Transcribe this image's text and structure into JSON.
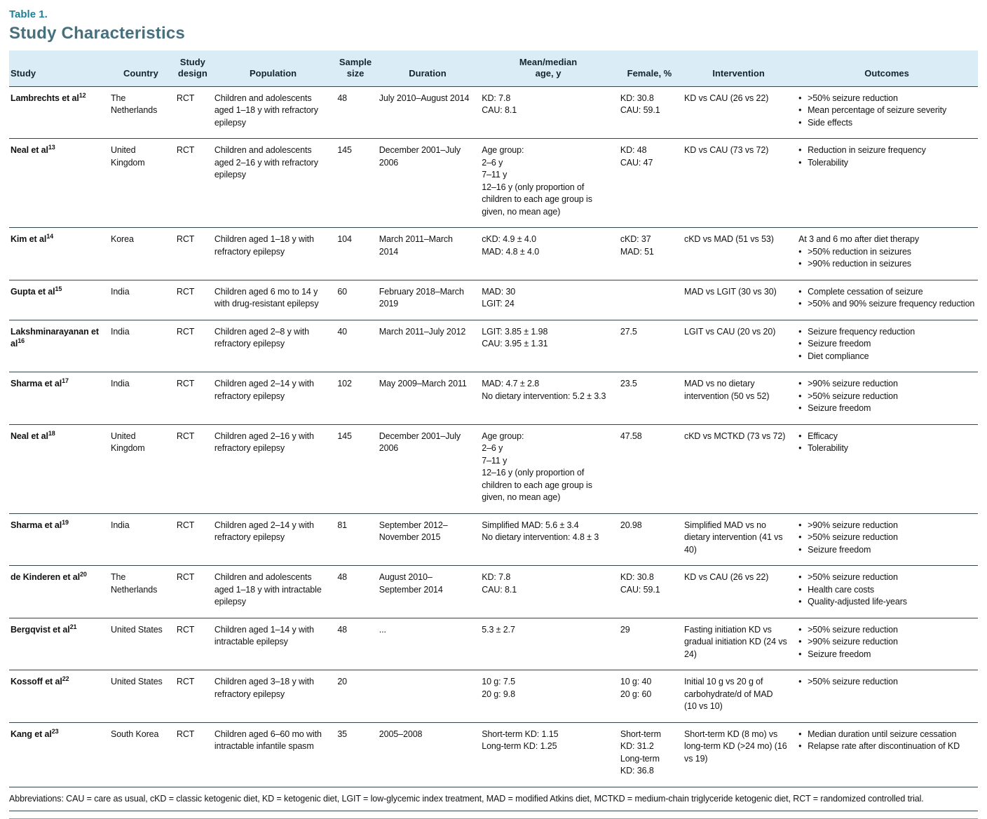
{
  "page": {
    "table_label": "Table 1.",
    "title": "Study Characteristics"
  },
  "colors": {
    "label_teal": "#1E7F95",
    "title_slate_teal": "#47707E",
    "header_band_blue": "#DAECF6",
    "rule_dark": "#32434E"
  },
  "table": {
    "bullet_char": "•",
    "columns": [
      {
        "key": "study",
        "label": "Study"
      },
      {
        "key": "country",
        "label": "Country"
      },
      {
        "key": "design",
        "label": "Study design",
        "label_lines": [
          "Study",
          "design"
        ]
      },
      {
        "key": "population",
        "label": "Population"
      },
      {
        "key": "sample",
        "label": "Sample size",
        "label_lines": [
          "Sample",
          "size"
        ]
      },
      {
        "key": "duration",
        "label": "Duration"
      },
      {
        "key": "age",
        "label": "Mean/median age, y",
        "label_lines": [
          "Mean/median",
          "age, y"
        ]
      },
      {
        "key": "female",
        "label": "Female, %"
      },
      {
        "key": "intervention",
        "label": "Intervention"
      },
      {
        "key": "outcomes",
        "label": "Outcomes"
      }
    ],
    "rows": [
      {
        "study": "Lambrechts et al",
        "study_sup": "12",
        "country": "The Netherlands",
        "design": "RCT",
        "population": "Children and adolescents aged 1–18 y with refractory epilepsy",
        "sample": "48",
        "duration": "July 2010–August 2014",
        "age": [
          "KD: 7.8",
          "CAU: 8.1"
        ],
        "female": [
          "KD: 30.8",
          "CAU: 59.1"
        ],
        "intervention": "KD vs CAU (26 vs 22)",
        "outcomes": [
          {
            "bullet": true,
            "text": ">50% seizure reduction"
          },
          {
            "bullet": true,
            "text": "Mean percentage of seizure severity"
          },
          {
            "bullet": true,
            "text": "Side effects"
          }
        ]
      },
      {
        "study": "Neal et al",
        "study_sup": "13",
        "country": "United Kingdom",
        "design": "RCT",
        "population": "Children and adolescents aged 2–16 y with refractory epilepsy",
        "sample": "145",
        "duration": "December 2001–July 2006",
        "age": [
          "Age group:",
          "2–6 y",
          "7–11 y",
          "12–16 y (only proportion of children to each age group is given, no mean age)"
        ],
        "female": [
          "KD: 48",
          "CAU: 47"
        ],
        "intervention": "KD vs CAU (73 vs 72)",
        "outcomes": [
          {
            "bullet": true,
            "text": "Reduction in seizure frequency"
          },
          {
            "bullet": true,
            "text": "Tolerability"
          }
        ]
      },
      {
        "study": "Kim et al",
        "study_sup": "14",
        "country": "Korea",
        "design": "RCT",
        "population": "Children aged 1–18 y with refractory epilepsy",
        "sample": "104",
        "duration": "March 2011–March 2014",
        "age": [
          "cKD: 4.9 ± 4.0",
          "MAD: 4.8 ± 4.0"
        ],
        "female": [
          "cKD: 37",
          "MAD: 51"
        ],
        "intervention": "cKD vs MAD (51 vs 53)",
        "outcomes": [
          {
            "bullet": false,
            "text": "At 3 and 6 mo after diet therapy"
          },
          {
            "bullet": true,
            "text": ">50% reduction in seizures"
          },
          {
            "bullet": true,
            "text": ">90% reduction in seizures"
          }
        ]
      },
      {
        "study": "Gupta et al",
        "study_sup": "15",
        "country": "India",
        "design": "RCT",
        "population": "Children aged 6 mo to 14 y with drug-resistant epilepsy",
        "sample": "60",
        "duration": "February 2018–March 2019",
        "age": [
          "MAD: 30",
          "LGIT: 24"
        ],
        "female": [],
        "intervention": "MAD vs LGIT (30 vs 30)",
        "outcomes": [
          {
            "bullet": true,
            "text": "Complete cessation of seizure"
          },
          {
            "bullet": true,
            "text": ">50% and 90% seizure frequency reduction"
          }
        ]
      },
      {
        "study": "Lakshminarayanan et al",
        "study_sup": "16",
        "country": "India",
        "design": "RCT",
        "population": "Children aged 2–8 y with refractory epilepsy",
        "sample": "40",
        "duration": "March 2011–July 2012",
        "age": [
          "LGIT: 3.85 ± 1.98",
          "CAU: 3.95 ± 1.31"
        ],
        "female": [
          "27.5"
        ],
        "intervention": "LGIT vs CAU (20 vs 20)",
        "outcomes": [
          {
            "bullet": true,
            "text": "Seizure frequency reduction"
          },
          {
            "bullet": true,
            "text": "Seizure freedom"
          },
          {
            "bullet": true,
            "text": "Diet compliance"
          }
        ]
      },
      {
        "study": "Sharma et al",
        "study_sup": "17",
        "country": "India",
        "design": "RCT",
        "population": "Children aged 2–14 y with refractory epilepsy",
        "sample": "102",
        "duration": "May 2009–March 2011",
        "age": [
          "MAD: 4.7 ± 2.8",
          "No dietary intervention: 5.2 ± 3.3"
        ],
        "female": [
          "23.5"
        ],
        "intervention": "MAD vs no dietary intervention (50 vs 52)",
        "outcomes": [
          {
            "bullet": true,
            "text": ">90% seizure reduction"
          },
          {
            "bullet": true,
            "text": ">50% seizure reduction"
          },
          {
            "bullet": true,
            "text": "Seizure freedom"
          }
        ]
      },
      {
        "study": "Neal et al",
        "study_sup": "18",
        "country": "United Kingdom",
        "design": "RCT",
        "population": "Children aged 2–16 y with refractory epilepsy",
        "sample": "145",
        "duration": "December 2001–July 2006",
        "age": [
          "Age group:",
          "2–6 y",
          "7–11 y",
          "12–16 y (only proportion of children to each age group is given, no mean age)"
        ],
        "female": [
          "47.58"
        ],
        "intervention": "cKD vs MCTKD (73 vs 72)",
        "outcomes": [
          {
            "bullet": true,
            "text": "Efficacy"
          },
          {
            "bullet": true,
            "text": "Tolerability"
          }
        ]
      },
      {
        "study": "Sharma et al",
        "study_sup": "19",
        "country": "India",
        "design": "RCT",
        "population": "Children aged 2–14 y with refractory epilepsy",
        "sample": "81",
        "duration": "September 2012–November 2015",
        "age": [
          "Simplified MAD: 5.6 ± 3.4",
          "No dietary intervention: 4.8 ± 3"
        ],
        "female": [
          "20.98"
        ],
        "intervention": "Simplified MAD vs no dietary intervention (41 vs 40)",
        "outcomes": [
          {
            "bullet": true,
            "text": ">90% seizure reduction"
          },
          {
            "bullet": true,
            "text": ">50% seizure reduction"
          },
          {
            "bullet": true,
            "text": "Seizure freedom"
          }
        ]
      },
      {
        "study": "de Kinderen et al",
        "study_sup": "20",
        "country": "The Netherlands",
        "design": "RCT",
        "population": "Children and adolescents aged 1–18 y with intractable epilepsy",
        "sample": "48",
        "duration": "August 2010–September 2014",
        "age": [
          "KD: 7.8",
          "CAU: 8.1"
        ],
        "female": [
          "KD: 30.8",
          "CAU: 59.1"
        ],
        "intervention": "KD vs CAU (26 vs 22)",
        "outcomes": [
          {
            "bullet": true,
            "text": ">50% seizure reduction"
          },
          {
            "bullet": true,
            "text": "Health care costs"
          },
          {
            "bullet": true,
            "text": "Quality-adjusted life-years"
          }
        ]
      },
      {
        "study": "Bergqvist et al",
        "study_sup": "21",
        "country": "United States",
        "design": "RCT",
        "population": "Children aged 1–14 y with intractable epilepsy",
        "sample": "48",
        "duration": "...",
        "age": [
          "5.3 ± 2.7"
        ],
        "female": [
          "29"
        ],
        "intervention": "Fasting initiation KD vs gradual initiation KD (24 vs 24)",
        "outcomes": [
          {
            "bullet": true,
            "text": ">50% seizure reduction"
          },
          {
            "bullet": true,
            "text": ">90% seizure reduction"
          },
          {
            "bullet": true,
            "text": "Seizure freedom"
          }
        ]
      },
      {
        "study": "Kossoff et al",
        "study_sup": "22",
        "country": "United States",
        "design": "RCT",
        "population": "Children aged 3–18 y with refractory epilepsy",
        "sample": "20",
        "duration": "",
        "age": [
          "10 g: 7.5",
          "20 g: 9.8"
        ],
        "female": [
          "10 g: 40",
          "20 g: 60"
        ],
        "intervention": "Initial 10 g vs 20 g of carbohydrate/d of MAD (10 vs 10)",
        "outcomes": [
          {
            "bullet": true,
            "text": ">50% seizure reduction"
          }
        ]
      },
      {
        "study": "Kang et al",
        "study_sup": "23",
        "country": "South Korea",
        "design": "RCT",
        "population": "Children aged 6–60 mo with intractable infantile spasm",
        "sample": "35",
        "duration": "2005–2008",
        "age": [
          "Short-term KD: 1.15",
          "Long-term KD: 1.25"
        ],
        "female": [
          "Short-term KD: 31.2",
          "Long-term KD: 36.8"
        ],
        "intervention": "Short-term KD (8 mo) vs long-term KD (>24 mo) (16 vs 19)",
        "outcomes": [
          {
            "bullet": true,
            "text": "Median duration until seizure cessation"
          },
          {
            "bullet": true,
            "text": "Relapse rate after discontinuation of KD"
          }
        ]
      }
    ]
  },
  "footnote": "Abbreviations: CAU = care as usual, cKD = classic ketogenic diet, KD = ketogenic diet, LGIT = low-glycemic index treatment, MAD = modified Atkins diet, MCTKD = medium-chain triglyceride ketogenic diet, RCT = randomized controlled trial."
}
